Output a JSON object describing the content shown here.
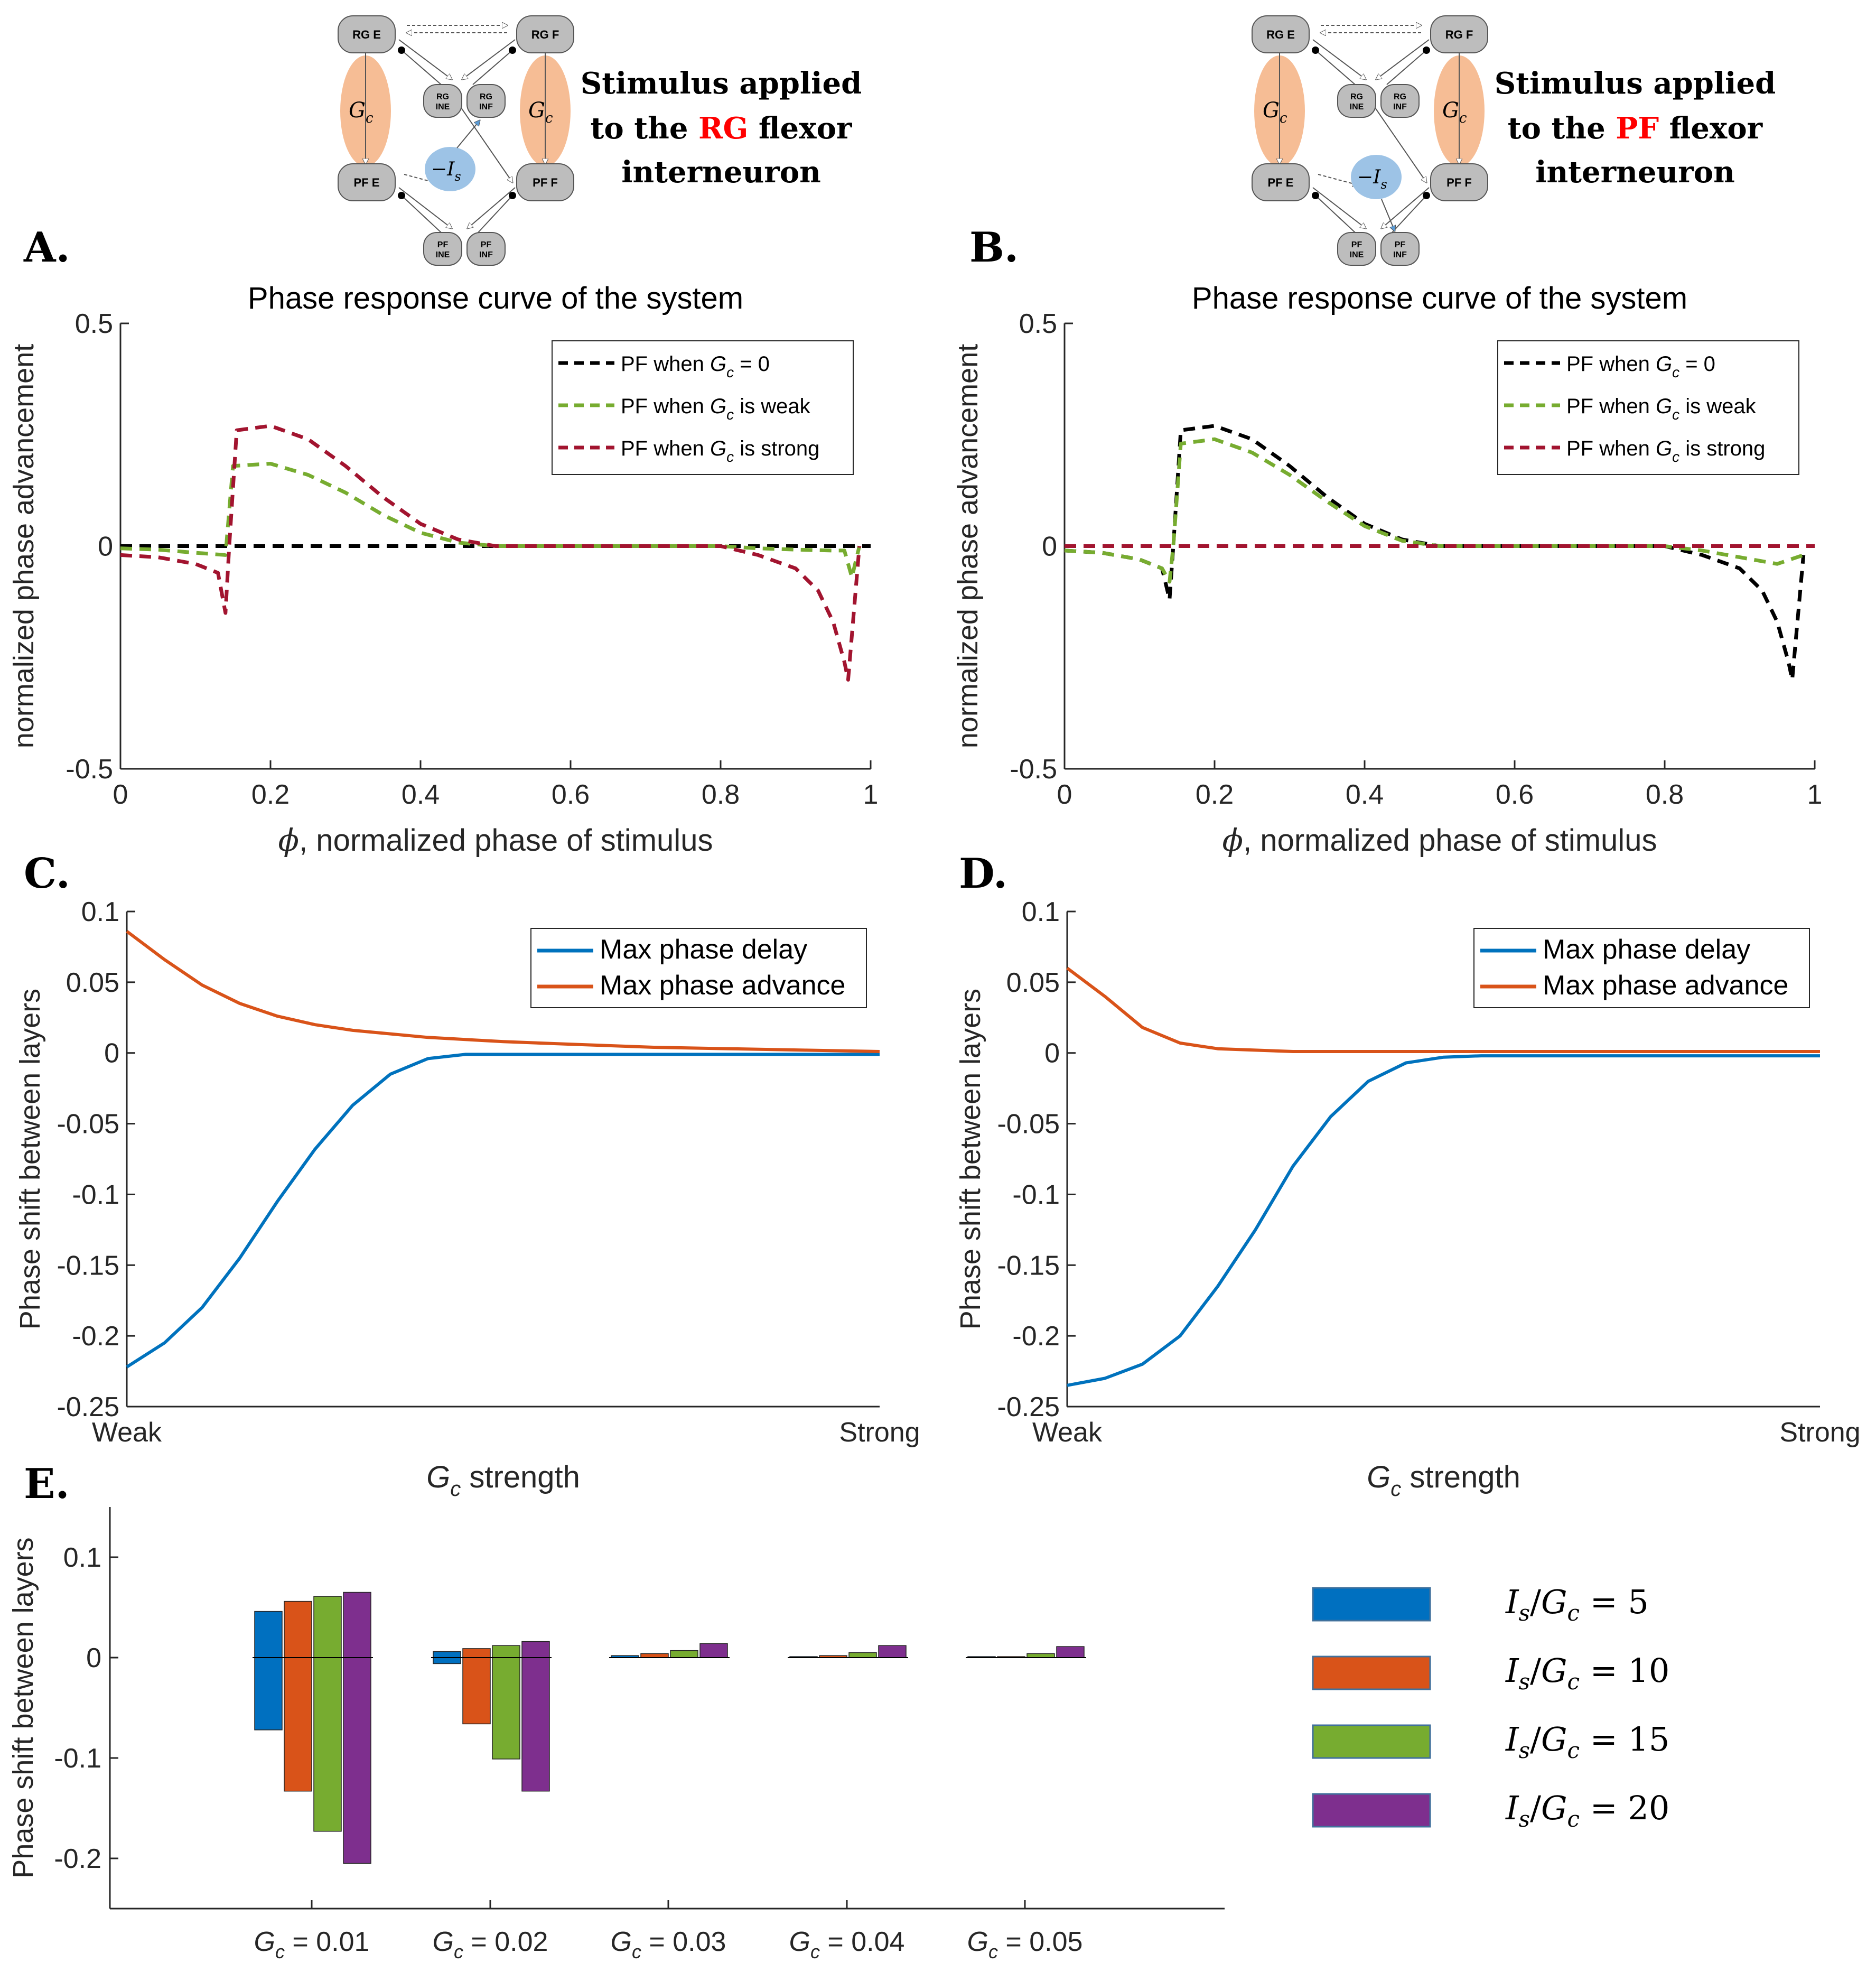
{
  "panels": {
    "A": {
      "letter": "A."
    },
    "B": {
      "letter": "B."
    },
    "C": {
      "letter": "C."
    },
    "D": {
      "letter": "D."
    },
    "E": {
      "letter": "E."
    }
  },
  "schematics": {
    "left": {
      "caption": [
        "Stimulus applied",
        "to the ",
        "RG",
        " flexor",
        "interneuron"
      ]
    },
    "right": {
      "caption": [
        "Stimulus applied",
        "to the ",
        "PF",
        " flexor",
        "interneuron"
      ]
    },
    "node_labels": {
      "rge": "RG E",
      "rgf": "RG F",
      "pfe": "PF E",
      "pff": "PF F",
      "rgine_a": "RG",
      "rgine_b": "INE",
      "rginf_a": "RG",
      "rginf_b": "INF",
      "pfine_a": "PF",
      "pfine_b": "INE",
      "pfinf_a": "PF",
      "pfinf_b": "INF"
    },
    "gc_label": "G",
    "gc_sub": "c",
    "stim_label": "−I",
    "stim_sub": "s",
    "colors": {
      "node": "#bdbdbd",
      "gc_oval": "#f4b183",
      "stim": "#9dc3e6",
      "arrow": "#5b9bd5",
      "highlight": "#ff0000"
    }
  },
  "chart_data": [
    {
      "id": "A",
      "type": "line",
      "title": "Phase response curve of the system",
      "xlabel_phi": "ϕ",
      "xlabel": ", normalized phase of stimulus",
      "ylabel": "normalized phase advancement",
      "xlim": [
        0,
        1
      ],
      "ylim": [
        -0.5,
        0.5
      ],
      "xticks": [
        0,
        0.2,
        0.4,
        0.6,
        0.8,
        1
      ],
      "xtick_labels": [
        "0",
        "0.2",
        "0.4",
        "0.6",
        "0.8",
        "1"
      ],
      "yticks": [
        -0.5,
        0,
        0.5
      ],
      "ytick_labels": [
        "-0.5",
        "0",
        "0.5"
      ],
      "series": [
        {
          "name": "PF when G_c = 0",
          "legend": [
            "PF when ",
            "G",
            "c",
            " = 0"
          ],
          "color": "#000000",
          "x": [
            0,
            1
          ],
          "y": [
            0,
            0
          ]
        },
        {
          "name": "PF when G_c is weak",
          "legend": [
            "PF when ",
            "G",
            "c",
            " is weak"
          ],
          "color": "#77ac30",
          "x": [
            0,
            0.05,
            0.1,
            0.14,
            0.145,
            0.15,
            0.2,
            0.25,
            0.3,
            0.35,
            0.4,
            0.45,
            0.5,
            0.55,
            0.6,
            0.7,
            0.8,
            0.85,
            0.9,
            0.95,
            0.965,
            0.975,
            0.985
          ],
          "y": [
            -0.005,
            -0.008,
            -0.015,
            -0.02,
            0.08,
            0.18,
            0.185,
            0.16,
            0.12,
            0.07,
            0.03,
            0.008,
            0,
            0,
            0,
            0,
            0,
            -0.005,
            -0.008,
            -0.01,
            -0.01,
            -0.07,
            0
          ]
        },
        {
          "name": "PF when G_c is strong",
          "legend": [
            "PF when ",
            "G",
            "c",
            " is strong"
          ],
          "color": "#a2142f",
          "x": [
            0,
            0.05,
            0.1,
            0.13,
            0.14,
            0.145,
            0.155,
            0.2,
            0.25,
            0.3,
            0.35,
            0.4,
            0.45,
            0.5,
            0.55,
            0.6,
            0.7,
            0.8,
            0.85,
            0.9,
            0.93,
            0.95,
            0.965,
            0.97,
            0.985
          ],
          "y": [
            -0.02,
            -0.025,
            -0.04,
            -0.06,
            -0.15,
            0.0,
            0.26,
            0.27,
            0.24,
            0.18,
            0.11,
            0.05,
            0.015,
            0,
            0,
            0,
            0,
            0,
            -0.02,
            -0.05,
            -0.1,
            -0.17,
            -0.26,
            -0.3,
            0
          ]
        }
      ],
      "legend_position": "top-right"
    },
    {
      "id": "B",
      "type": "line",
      "title": "Phase response curve of the system",
      "xlabel_phi": "ϕ",
      "xlabel": ", normalized phase of stimulus",
      "ylabel": "normalized phase advancement",
      "xlim": [
        0,
        1
      ],
      "ylim": [
        -0.5,
        0.5
      ],
      "xticks": [
        0,
        0.2,
        0.4,
        0.6,
        0.8,
        1
      ],
      "xtick_labels": [
        "0",
        "0.2",
        "0.4",
        "0.6",
        "0.8",
        "1"
      ],
      "yticks": [
        -0.5,
        0,
        0.5
      ],
      "ytick_labels": [
        "-0.5",
        "0",
        "0.5"
      ],
      "series": [
        {
          "name": "PF when G_c = 0",
          "legend": [
            "PF when ",
            "G",
            "c",
            " = 0"
          ],
          "color": "#000000",
          "x": [
            0,
            0.05,
            0.1,
            0.13,
            0.14,
            0.145,
            0.155,
            0.2,
            0.25,
            0.3,
            0.35,
            0.4,
            0.45,
            0.5,
            0.55,
            0.6,
            0.7,
            0.8,
            0.85,
            0.9,
            0.93,
            0.95,
            0.965,
            0.97,
            0.985
          ],
          "y": [
            -0.01,
            -0.015,
            -0.03,
            -0.05,
            -0.12,
            0.0,
            0.26,
            0.27,
            0.24,
            0.18,
            0.11,
            0.05,
            0.015,
            0,
            0,
            0,
            0,
            0,
            -0.02,
            -0.05,
            -0.1,
            -0.17,
            -0.26,
            -0.3,
            -0.02
          ]
        },
        {
          "name": "PF when G_c is weak",
          "legend": [
            "PF when ",
            "G",
            "c",
            " is weak"
          ],
          "color": "#77ac30",
          "x": [
            0,
            0.05,
            0.1,
            0.13,
            0.14,
            0.145,
            0.155,
            0.2,
            0.25,
            0.3,
            0.35,
            0.4,
            0.45,
            0.5,
            0.55,
            0.6,
            0.7,
            0.8,
            0.85,
            0.9,
            0.95,
            0.985
          ],
          "y": [
            -0.01,
            -0.015,
            -0.03,
            -0.05,
            -0.08,
            0.0,
            0.23,
            0.24,
            0.21,
            0.16,
            0.1,
            0.045,
            0.012,
            0,
            0,
            0,
            0,
            0,
            -0.01,
            -0.025,
            -0.04,
            -0.02
          ]
        },
        {
          "name": "PF when G_c is strong",
          "legend": [
            "PF when ",
            "G",
            "c",
            " is strong"
          ],
          "color": "#a2142f",
          "x": [
            0,
            1
          ],
          "y": [
            0,
            0
          ]
        }
      ],
      "legend_position": "top-right"
    },
    {
      "id": "C",
      "type": "line",
      "xlabel_g": "G",
      "xlabel_sub": "c",
      "xlabel": " strength",
      "ylabel": "Phase shift between layers",
      "xlim": [
        0,
        1
      ],
      "ylim": [
        -0.25,
        0.1
      ],
      "xtick_labels": [
        "Weak",
        "Strong"
      ],
      "yticks": [
        -0.25,
        -0.2,
        -0.15,
        -0.1,
        -0.05,
        0,
        0.05,
        0.1
      ],
      "ytick_labels": [
        "-0.25",
        "-0.2",
        "-0.15",
        "-0.1",
        "-0.05",
        "0",
        "0.05",
        "0.1"
      ],
      "series": [
        {
          "name": "Max phase delay",
          "color": "#0072bd",
          "x": [
            0,
            0.05,
            0.1,
            0.15,
            0.2,
            0.25,
            0.3,
            0.35,
            0.4,
            0.45,
            0.5,
            0.55,
            0.6,
            0.7,
            0.8,
            0.9,
            1
          ],
          "y": [
            -0.222,
            -0.205,
            -0.18,
            -0.145,
            -0.105,
            -0.068,
            -0.037,
            -0.015,
            -0.004,
            -0.001,
            -0.001,
            -0.001,
            -0.001,
            -0.001,
            -0.001,
            -0.001,
            -0.001
          ]
        },
        {
          "name": "Max phase advance",
          "color": "#d95319",
          "x": [
            0,
            0.05,
            0.1,
            0.15,
            0.2,
            0.25,
            0.3,
            0.4,
            0.5,
            0.6,
            0.7,
            0.8,
            0.9,
            1
          ],
          "y": [
            0.086,
            0.066,
            0.048,
            0.035,
            0.026,
            0.02,
            0.016,
            0.011,
            0.008,
            0.006,
            0.004,
            0.003,
            0.002,
            0.001
          ]
        }
      ],
      "legend_position": "top-right"
    },
    {
      "id": "D",
      "type": "line",
      "xlabel_g": "G",
      "xlabel_sub": "c",
      "xlabel": " strength",
      "ylabel": "Phase shift between layers",
      "xlim": [
        0,
        1
      ],
      "ylim": [
        -0.25,
        0.1
      ],
      "xtick_labels": [
        "Weak",
        "Strong"
      ],
      "yticks": [
        -0.25,
        -0.2,
        -0.15,
        -0.1,
        -0.05,
        0,
        0.05,
        0.1
      ],
      "ytick_labels": [
        "-0.25",
        "-0.2",
        "-0.15",
        "-0.1",
        "-0.05",
        "0",
        "0.05",
        "0.1"
      ],
      "series": [
        {
          "name": "Max phase delay",
          "color": "#0072bd",
          "x": [
            0,
            0.05,
            0.1,
            0.15,
            0.2,
            0.25,
            0.3,
            0.35,
            0.4,
            0.45,
            0.5,
            0.55,
            0.6,
            0.7,
            0.8,
            0.9,
            1
          ],
          "y": [
            -0.235,
            -0.23,
            -0.22,
            -0.2,
            -0.165,
            -0.125,
            -0.08,
            -0.045,
            -0.02,
            -0.007,
            -0.003,
            -0.002,
            -0.002,
            -0.002,
            -0.002,
            -0.002,
            -0.002
          ]
        },
        {
          "name": "Max phase advance",
          "color": "#d95319",
          "x": [
            0,
            0.05,
            0.1,
            0.15,
            0.2,
            0.25,
            0.3,
            0.4,
            0.5,
            0.6,
            0.7,
            0.8,
            0.9,
            1
          ],
          "y": [
            0.06,
            0.04,
            0.018,
            0.007,
            0.003,
            0.002,
            0.001,
            0.001,
            0.001,
            0.001,
            0.001,
            0.001,
            0.001,
            0.001
          ]
        }
      ],
      "legend_position": "top-right"
    },
    {
      "id": "E",
      "type": "bar",
      "ylabel": "Phase shift between layers",
      "ylim": [
        -0.25,
        0.15
      ],
      "yticks": [
        -0.2,
        -0.1,
        0,
        0.1
      ],
      "ytick_labels": [
        "-0.2",
        "-0.1",
        "0",
        "0.1"
      ],
      "categories": [
        "G_c = 0.01",
        "G_c = 0.02",
        "G_c = 0.03",
        "G_c = 0.04",
        "G_c = 0.05"
      ],
      "category_labels": [
        {
          "g": "G",
          "sub": "c",
          "rest": " = 0.01"
        },
        {
          "g": "G",
          "sub": "c",
          "rest": " = 0.02"
        },
        {
          "g": "G",
          "sub": "c",
          "rest": " = 0.03"
        },
        {
          "g": "G",
          "sub": "c",
          "rest": " = 0.04"
        },
        {
          "g": "G",
          "sub": "c",
          "rest": " = 0.05"
        }
      ],
      "series": [
        {
          "name": "I_s/G_c = 5",
          "legend": {
            "I": "I",
            "s": "s",
            "G": "G",
            "c": "c",
            "rest": " = 5"
          },
          "color": "#0070c0",
          "advance": [
            0.046,
            0.006,
            0.002,
            0.001,
            0.001
          ],
          "delay": [
            -0.072,
            -0.006,
            0,
            0,
            0
          ]
        },
        {
          "name": "I_s/G_c = 10",
          "legend": {
            "I": "I",
            "s": "s",
            "G": "G",
            "c": "c",
            "rest": " = 10"
          },
          "color": "#d95319",
          "advance": [
            0.056,
            0.009,
            0.004,
            0.002,
            0.001
          ],
          "delay": [
            -0.133,
            -0.066,
            0,
            0,
            0
          ]
        },
        {
          "name": "I_s/G_c = 15",
          "legend": {
            "I": "I",
            "s": "s",
            "G": "G",
            "c": "c",
            "rest": " = 15"
          },
          "color": "#77ac30",
          "advance": [
            0.061,
            0.012,
            0.007,
            0.005,
            0.004
          ],
          "delay": [
            -0.173,
            -0.101,
            0,
            0,
            0
          ]
        },
        {
          "name": "I_s/G_c = 20",
          "legend": {
            "I": "I",
            "s": "s",
            "G": "G",
            "c": "c",
            "rest": " = 20"
          },
          "color": "#7e2f8e",
          "advance": [
            0.065,
            0.016,
            0.014,
            0.012,
            0.011
          ],
          "delay": [
            -0.205,
            -0.133,
            0,
            0,
            0
          ]
        }
      ]
    }
  ]
}
